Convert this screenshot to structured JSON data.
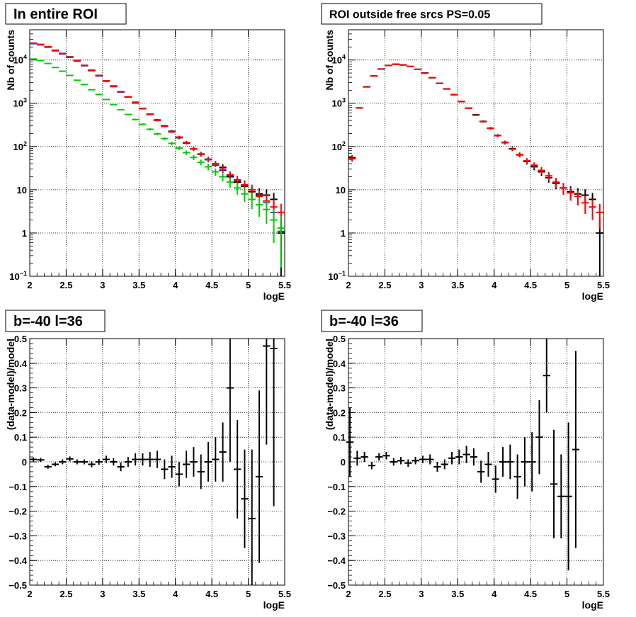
{
  "chart_data": [
    {
      "type": "scatter",
      "title": "In entire ROI",
      "xlabel": "logE",
      "ylabel": "Nb of counts",
      "xlim": [
        2,
        5.5
      ],
      "ylim": [
        0.1,
        50000
      ],
      "yscale": "log",
      "grid": true,
      "x_ticks": [
        "2",
        "2.5",
        "3",
        "3.5",
        "4",
        "4.5",
        "5",
        "5.5"
      ],
      "y_ticks": [
        {
          "v": 0.1,
          "label": "10",
          "sup": "−1"
        },
        {
          "v": 1,
          "label": "1",
          "sup": ""
        },
        {
          "v": 10,
          "label": "10",
          "sup": ""
        },
        {
          "v": 100,
          "label": "10",
          "sup": "2"
        },
        {
          "v": 1000,
          "label": "10",
          "sup": "3"
        },
        {
          "v": 10000,
          "label": "10",
          "sup": "4"
        }
      ],
      "x": [
        2.05,
        2.15,
        2.25,
        2.35,
        2.45,
        2.55,
        2.65,
        2.75,
        2.85,
        2.95,
        3.05,
        3.15,
        3.25,
        3.35,
        3.45,
        3.55,
        3.65,
        3.75,
        3.85,
        3.95,
        4.05,
        4.15,
        4.25,
        4.35,
        4.45,
        4.55,
        4.65,
        4.75,
        4.85,
        4.95,
        5.05,
        5.15,
        5.25,
        5.35,
        5.45
      ],
      "series": [
        {
          "color": "#000000",
          "values": [
            24000,
            22500,
            20000,
            16800,
            14200,
            11800,
            9800,
            7500,
            5800,
            4400,
            3300,
            2500,
            1850,
            1400,
            1050,
            760,
            560,
            410,
            300,
            225,
            160,
            123,
            88,
            67,
            51,
            40,
            33,
            20,
            15,
            12,
            9,
            8,
            7.5,
            6,
            1
          ],
          "err": true
        },
        {
          "color": "#0000cc",
          "values": [
            23700,
            22300,
            19600,
            16200,
            13700,
            11400,
            9400,
            7300,
            5600,
            4250,
            3200,
            2400,
            1800,
            1380,
            1000,
            740,
            545,
            395,
            290,
            215,
            160,
            118,
            87,
            65,
            49,
            37,
            28,
            21,
            16,
            13,
            10,
            7.5,
            5,
            3,
            1.1
          ],
          "err": false
        },
        {
          "color": "#ff0000",
          "values": [
            24500,
            23000,
            20200,
            16800,
            14100,
            11600,
            9700,
            7500,
            5700,
            4400,
            3300,
            2450,
            1850,
            1400,
            1030,
            750,
            560,
            400,
            295,
            220,
            165,
            122,
            89,
            66,
            50,
            40,
            30,
            22,
            17,
            13,
            10,
            7,
            5.5,
            4,
            3
          ],
          "err": true
        },
        {
          "color": "#00cc00",
          "values": [
            10500,
            9700,
            8300,
            6700,
            5500,
            4400,
            3400,
            2700,
            2050,
            1600,
            1220,
            930,
            710,
            550,
            420,
            325,
            250,
            195,
            152,
            118,
            92,
            72,
            56,
            43,
            34,
            26,
            20,
            15,
            11,
            8,
            6,
            4.5,
            3.5,
            2,
            1.3
          ],
          "err": true
        }
      ]
    },
    {
      "type": "scatter",
      "title": "ROI outside free srcs PS=0.05",
      "xlabel": "logE",
      "ylabel": "Nb of counts",
      "xlim": [
        2,
        5.5
      ],
      "ylim": [
        0.1,
        50000
      ],
      "yscale": "log",
      "grid": true,
      "x_ticks": [
        "2",
        "2.5",
        "3",
        "3.5",
        "4",
        "4.5",
        "5",
        "5.5"
      ],
      "y_ticks": [
        {
          "v": 0.1,
          "label": "10",
          "sup": "−1"
        },
        {
          "v": 1,
          "label": "1",
          "sup": ""
        },
        {
          "v": 10,
          "label": "10",
          "sup": ""
        },
        {
          "v": 100,
          "label": "10",
          "sup": "2"
        },
        {
          "v": 1000,
          "label": "10",
          "sup": "3"
        },
        {
          "v": 10000,
          "label": "10",
          "sup": "4"
        }
      ],
      "x": [
        2.05,
        2.15,
        2.25,
        2.35,
        2.45,
        2.55,
        2.65,
        2.75,
        2.85,
        2.95,
        3.05,
        3.15,
        3.25,
        3.35,
        3.45,
        3.55,
        3.65,
        3.75,
        3.85,
        3.95,
        4.05,
        4.15,
        4.25,
        4.35,
        4.45,
        4.55,
        4.65,
        4.75,
        4.85,
        4.95,
        5.05,
        5.15,
        5.25,
        5.35,
        5.45
      ],
      "series": [
        {
          "color": "#000000",
          "values": [
            55,
            780,
            2400,
            4300,
            6200,
            7500,
            8000,
            7700,
            7100,
            6100,
            5000,
            3900,
            2900,
            2150,
            1580,
            1100,
            770,
            540,
            380,
            265,
            180,
            125,
            89,
            64,
            45,
            34,
            26,
            19,
            14,
            11,
            9,
            8,
            7.5,
            6,
            1
          ],
          "err": true
        },
        {
          "color": "#ff0000",
          "values": [
            52,
            780,
            2380,
            4280,
            6150,
            7450,
            7950,
            7650,
            7050,
            6050,
            4950,
            3880,
            2880,
            2130,
            1570,
            1090,
            760,
            530,
            375,
            262,
            178,
            122,
            87,
            65,
            47,
            37,
            28,
            21,
            15,
            11,
            8.5,
            7,
            5,
            4,
            3
          ],
          "err": true
        }
      ]
    },
    {
      "type": "scatter",
      "title": "b=-40 l=36",
      "xlabel": "logE",
      "ylabel": "(data-model)/model",
      "xlim": [
        2,
        5.5
      ],
      "ylim": [
        -0.5,
        0.5
      ],
      "grid": true,
      "x_ticks": [
        "2",
        "2.5",
        "3",
        "3.5",
        "4",
        "4.5",
        "5",
        "5.5"
      ],
      "y_ticks": [
        "−0.5",
        "−0.4",
        "−0.3",
        "−0.2",
        "−0.1",
        "0",
        "0.1",
        "0.2",
        "0.3",
        "0.4",
        "0.5"
      ],
      "x": [
        2.05,
        2.15,
        2.25,
        2.35,
        2.45,
        2.55,
        2.65,
        2.75,
        2.85,
        2.95,
        3.05,
        3.15,
        3.25,
        3.35,
        3.45,
        3.55,
        3.65,
        3.75,
        3.85,
        3.95,
        4.05,
        4.15,
        4.25,
        4.35,
        4.45,
        4.55,
        4.65,
        4.75,
        4.85,
        4.95,
        5.05,
        5.15,
        5.25,
        5.35
      ],
      "series": [
        {
          "color": "#000000",
          "values": [
            0.01,
            0.008,
            -0.02,
            -0.01,
            0.0,
            0.012,
            0.0,
            0.0,
            -0.01,
            0.0,
            0.01,
            0.0,
            -0.02,
            0.0,
            0.01,
            0.01,
            0.01,
            0.01,
            -0.03,
            -0.02,
            -0.05,
            -0.01,
            0.0,
            -0.04,
            0.0,
            0.01,
            0.04,
            0.3,
            -0.03,
            -0.15,
            -0.23,
            -0.06,
            0.47,
            0.46
          ],
          "err": [
            0.008,
            0.008,
            0.008,
            0.008,
            0.01,
            0.01,
            0.01,
            0.01,
            0.012,
            0.012,
            0.015,
            0.015,
            0.018,
            0.02,
            0.025,
            0.025,
            0.03,
            0.035,
            0.04,
            0.045,
            0.05,
            0.055,
            0.06,
            0.07,
            0.08,
            0.09,
            0.12,
            0.3,
            0.2,
            0.2,
            0.28,
            0.35,
            0.4,
            0.64
          ]
        }
      ]
    },
    {
      "type": "scatter",
      "title": "b=-40 l=36",
      "xlabel": "logE",
      "ylabel": "(data-model)/model",
      "xlim": [
        2,
        5.5
      ],
      "ylim": [
        -0.5,
        0.5
      ],
      "grid": true,
      "x_ticks": [
        "2",
        "2.5",
        "3",
        "3.5",
        "4",
        "4.5",
        "5",
        "5.5"
      ],
      "y_ticks": [
        "−0.5",
        "−0.4",
        "−0.3",
        "−0.2",
        "−0.1",
        "0",
        "0.1",
        "0.2",
        "0.3",
        "0.4",
        "0.5"
      ],
      "x": [
        2.02,
        2.12,
        2.22,
        2.32,
        2.42,
        2.52,
        2.62,
        2.72,
        2.82,
        2.92,
        3.02,
        3.12,
        3.22,
        3.32,
        3.42,
        3.52,
        3.62,
        3.72,
        3.82,
        3.92,
        4.02,
        4.12,
        4.22,
        4.32,
        4.42,
        4.52,
        4.62,
        4.72,
        4.82,
        4.92,
        5.02,
        5.12
      ],
      "series": [
        {
          "color": "#000000",
          "values": [
            0.08,
            0.015,
            0.02,
            -0.015,
            0.02,
            0.025,
            0.0,
            0.005,
            -0.005,
            0.005,
            0.01,
            0.01,
            -0.02,
            -0.01,
            0.015,
            0.02,
            0.03,
            0.02,
            -0.04,
            -0.01,
            -0.07,
            0.0,
            0.0,
            -0.06,
            0.0,
            0.0,
            0.1,
            0.35,
            -0.09,
            -0.14,
            -0.14,
            0.05
          ],
          "err": [
            0.14,
            0.03,
            0.02,
            0.015,
            0.015,
            0.015,
            0.015,
            0.015,
            0.015,
            0.015,
            0.015,
            0.02,
            0.02,
            0.02,
            0.025,
            0.03,
            0.035,
            0.035,
            0.045,
            0.05,
            0.055,
            0.06,
            0.07,
            0.09,
            0.1,
            0.12,
            0.15,
            0.15,
            0.22,
            0.17,
            0.3,
            0.4
          ]
        }
      ]
    }
  ]
}
